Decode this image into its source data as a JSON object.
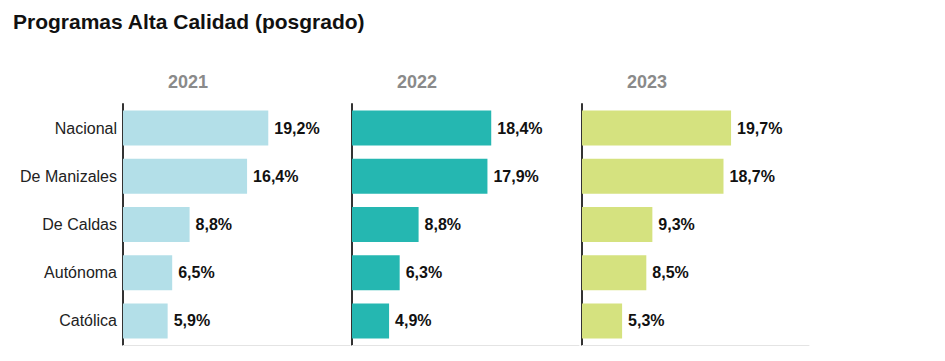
{
  "chart_data": {
    "type": "bar",
    "title": "Programas Alta Calidad (posgrado)",
    "orientation": "horizontal",
    "data_labels": true,
    "tick_labels": "y",
    "grid": false,
    "categories": [
      "Nacional",
      "De Manizales",
      "De Caldas",
      "Autónoma",
      "Católica"
    ],
    "xlim": [
      0,
      30
    ],
    "series": [
      {
        "name": "2021",
        "color": "#b3dfe8",
        "values": [
          19.2,
          16.4,
          8.8,
          6.5,
          5.9
        ],
        "value_labels": [
          "19,2%",
          "16,4%",
          "8,8%",
          "6,5%",
          "5,9%"
        ]
      },
      {
        "name": "2022",
        "color": "#25b7b1",
        "values": [
          18.4,
          17.9,
          8.8,
          6.3,
          4.9
        ],
        "value_labels": [
          "18,4%",
          "17,9%",
          "8,8%",
          "6,3%",
          "4,9%"
        ]
      },
      {
        "name": "2023",
        "color": "#d5e27f",
        "values": [
          19.7,
          18.7,
          9.3,
          8.5,
          5.3
        ],
        "value_labels": [
          "19,7%",
          "18,7%",
          "9,3%",
          "8,5%",
          "5,3%"
        ]
      }
    ]
  }
}
